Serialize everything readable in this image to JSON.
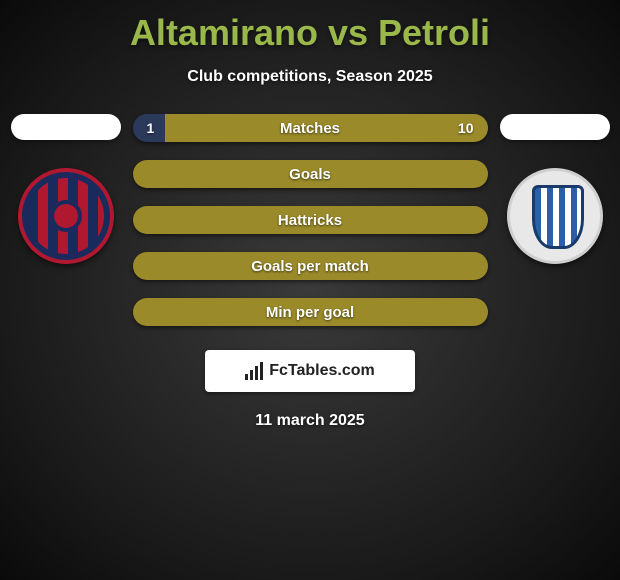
{
  "header": {
    "title": "Altamirano vs Petroli",
    "subtitle": "Club competitions, Season 2025",
    "title_color": "#9ab84a"
  },
  "bars": {
    "label_color": "#ffffff",
    "label_fontsize": 15,
    "fill_color": "#9a8a2a",
    "alt_fill_color": "#2b3a5a",
    "items": [
      {
        "key": "matches",
        "label": "Matches",
        "left": "1",
        "right": "10",
        "split_pct": 9
      },
      {
        "key": "goals",
        "label": "Goals"
      },
      {
        "key": "hattricks",
        "label": "Hattricks"
      },
      {
        "key": "gpm",
        "label": "Goals per match"
      },
      {
        "key": "mpg",
        "label": "Min per goal"
      }
    ]
  },
  "brand": {
    "text": "FcTables.com"
  },
  "date": "11 march 2025",
  "colors": {
    "background_center": "#3a3a3a",
    "background_edge": "#0a0a0a",
    "text": "#ffffff"
  }
}
